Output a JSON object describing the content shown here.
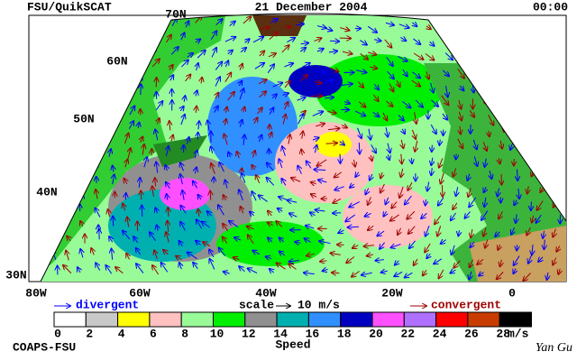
{
  "header": {
    "left": "FSU/QuikSCAT",
    "title": "21 December 2004",
    "time": "00:00"
  },
  "map": {
    "lat_labels": [
      "70N",
      "60N",
      "50N",
      "40N",
      "30N"
    ],
    "lon_labels": [
      "80W",
      "60W",
      "40W",
      "20W",
      "0"
    ]
  },
  "legend": {
    "divergent": "divergent",
    "scale": "scale",
    "scale_value": "10 m/s",
    "convergent": "convergent"
  },
  "colorbar": {
    "labels": [
      "0",
      "2",
      "4",
      "6",
      "8",
      "10",
      "12",
      "14",
      "16",
      "18",
      "20",
      "22",
      "24",
      "26",
      "28"
    ],
    "unit": "m/s",
    "title": "Speed",
    "colors": [
      "#ffffff",
      "#c8c8c8",
      "#ffff00",
      "#ffc0c0",
      "#98fb98",
      "#00ee00",
      "#909090",
      "#00b0b0",
      "#3090ff",
      "#0000c0",
      "#ff50ff",
      "#b070ff",
      "#ff0000",
      "#c83c00",
      "#000000"
    ]
  },
  "footer": {
    "left": "COAPS-FSU",
    "signature": "Yan Gu"
  }
}
